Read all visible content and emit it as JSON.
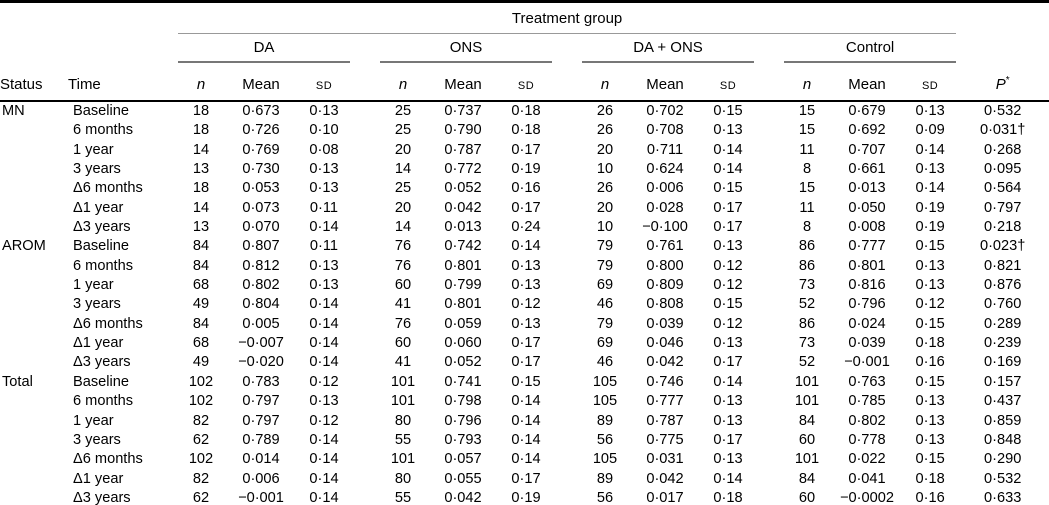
{
  "table": {
    "spanner": "Treatment group",
    "header": {
      "status": "Status",
      "time": "Time",
      "n": "n",
      "mean": "Mean",
      "sd": "SD",
      "p": "P",
      "p_marker": "*"
    },
    "groups": [
      "DA",
      "ONS",
      "DA + ONS",
      "Control"
    ],
    "colors": {
      "text": "#000000",
      "thin_rule": "#999999",
      "group_rule": "#777777",
      "heavy_rule": "#000000",
      "background": "#ffffff"
    },
    "sections": [
      {
        "status": "MN",
        "rows": [
          [
            "Baseline",
            "18",
            "0·673",
            "0·13",
            "25",
            "0·737",
            "0·18",
            "26",
            "0·702",
            "0·15",
            "15",
            "0·679",
            "0·13",
            "0·532"
          ],
          [
            "6 months",
            "18",
            "0·726",
            "0·10",
            "25",
            "0·790",
            "0·18",
            "26",
            "0·708",
            "0·13",
            "15",
            "0·692",
            "0·09",
            "0·031†"
          ],
          [
            "1 year",
            "14",
            "0·769",
            "0·08",
            "20",
            "0·787",
            "0·17",
            "20",
            "0·711",
            "0·14",
            "11",
            "0·707",
            "0·14",
            "0·268"
          ],
          [
            "3 years",
            "13",
            "0·730",
            "0·13",
            "14",
            "0·772",
            "0·19",
            "10",
            "0·624",
            "0·14",
            "8",
            "0·661",
            "0·13",
            "0·095"
          ],
          [
            "Δ6 months",
            "18",
            "0·053",
            "0·13",
            "25",
            "0·052",
            "0·16",
            "26",
            "0·006",
            "0·15",
            "15",
            "0·013",
            "0·14",
            "0·564"
          ],
          [
            "Δ1 year",
            "14",
            "0·073",
            "0·11",
            "20",
            "0·042",
            "0·17",
            "20",
            "0·028",
            "0·17",
            "11",
            "0·050",
            "0·19",
            "0·797"
          ],
          [
            "Δ3 years",
            "13",
            "0·070",
            "0·14",
            "14",
            "0·013",
            "0·24",
            "10",
            "−0·100",
            "0·17",
            "8",
            "0·008",
            "0·19",
            "0·218"
          ]
        ]
      },
      {
        "status": "AROM",
        "rows": [
          [
            "Baseline",
            "84",
            "0·807",
            "0·11",
            "76",
            "0·742",
            "0·14",
            "79",
            "0·761",
            "0·13",
            "86",
            "0·777",
            "0·15",
            "0·023†"
          ],
          [
            "6 months",
            "84",
            "0·812",
            "0·13",
            "76",
            "0·801",
            "0·13",
            "79",
            "0·800",
            "0·12",
            "86",
            "0·801",
            "0·13",
            "0·821"
          ],
          [
            "1 year",
            "68",
            "0·802",
            "0·13",
            "60",
            "0·799",
            "0·13",
            "69",
            "0·809",
            "0·12",
            "73",
            "0·816",
            "0·13",
            "0·876"
          ],
          [
            "3 years",
            "49",
            "0·804",
            "0·14",
            "41",
            "0·801",
            "0·12",
            "46",
            "0·808",
            "0·15",
            "52",
            "0·796",
            "0·12",
            "0·760"
          ],
          [
            "Δ6 months",
            "84",
            "0·005",
            "0·14",
            "76",
            "0·059",
            "0·13",
            "79",
            "0·039",
            "0·12",
            "86",
            "0·024",
            "0·15",
            "0·289"
          ],
          [
            "Δ1 year",
            "68",
            "−0·007",
            "0·14",
            "60",
            "0·060",
            "0·17",
            "69",
            "0·046",
            "0·13",
            "73",
            "0·039",
            "0·18",
            "0·239"
          ],
          [
            "Δ3 years",
            "49",
            "−0·020",
            "0·14",
            "41",
            "0·052",
            "0·17",
            "46",
            "0·042",
            "0·17",
            "52",
            "−0·001",
            "0·16",
            "0·169"
          ]
        ]
      },
      {
        "status": "Total",
        "rows": [
          [
            "Baseline",
            "102",
            "0·783",
            "0·12",
            "101",
            "0·741",
            "0·15",
            "105",
            "0·746",
            "0·14",
            "101",
            "0·763",
            "0·15",
            "0·157"
          ],
          [
            "6 months",
            "102",
            "0·797",
            "0·13",
            "101",
            "0·798",
            "0·14",
            "105",
            "0·777",
            "0·13",
            "101",
            "0·785",
            "0·13",
            "0·437"
          ],
          [
            "1 year",
            "82",
            "0·797",
            "0·12",
            "80",
            "0·796",
            "0·14",
            "89",
            "0·787",
            "0·13",
            "84",
            "0·802",
            "0·13",
            "0·859"
          ],
          [
            "3 years",
            "62",
            "0·789",
            "0·14",
            "55",
            "0·793",
            "0·14",
            "56",
            "0·775",
            "0·17",
            "60",
            "0·778",
            "0·13",
            "0·848"
          ],
          [
            "Δ6 months",
            "102",
            "0·014",
            "0·14",
            "101",
            "0·057",
            "0·14",
            "105",
            "0·031",
            "0·13",
            "101",
            "0·022",
            "0·15",
            "0·290"
          ],
          [
            "Δ1 year",
            "82",
            "0·006",
            "0·14",
            "80",
            "0·055",
            "0·17",
            "89",
            "0·042",
            "0·14",
            "84",
            "0·041",
            "0·18",
            "0·532"
          ],
          [
            "Δ3 years",
            "62",
            "−0·001",
            "0·14",
            "55",
            "0·042",
            "0·19",
            "56",
            "0·017",
            "0·18",
            "60",
            "−0·0002",
            "0·16",
            "0·633"
          ]
        ]
      }
    ]
  }
}
